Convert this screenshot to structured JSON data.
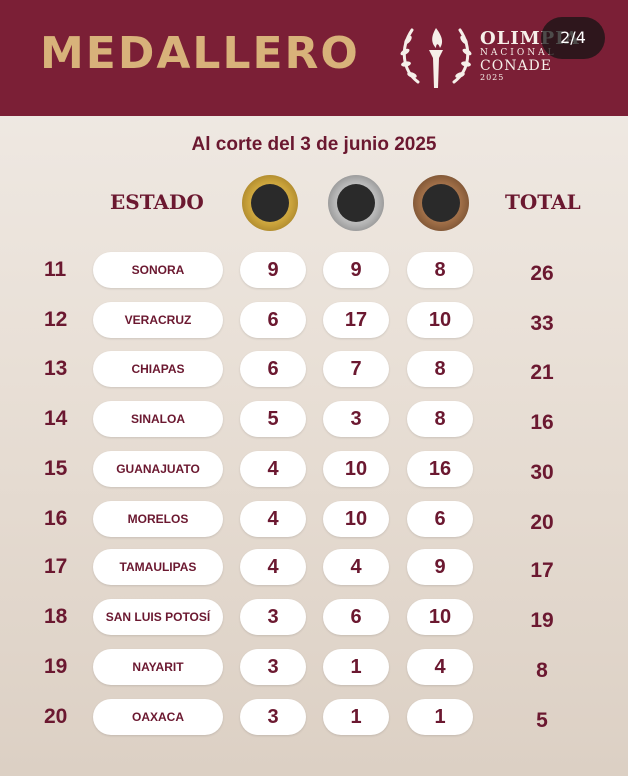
{
  "header": {
    "title": "MEDALLERO",
    "logo": {
      "line1": "OLIMPIA",
      "line2": "NACIONAL",
      "line3": "CONADE",
      "line4": "2025"
    },
    "pager": "2/4"
  },
  "subtitle": "Al corte del 3 de junio 2025",
  "columns": {
    "state": "ESTADO",
    "total": "TOTAL"
  },
  "medals": {
    "gold": {
      "color": "#c9a23a",
      "icon": "gold-medal-icon"
    },
    "silver": {
      "color": "#a9a9a9",
      "icon": "silver-medal-icon"
    },
    "bronze": {
      "color": "#8a5a35",
      "icon": "bronze-medal-icon"
    }
  },
  "rows": [
    {
      "rank": "11",
      "state": "SONORA",
      "gold": "9",
      "silver": "9",
      "bronze": "8",
      "total": "26"
    },
    {
      "rank": "12",
      "state": "VERACRUZ",
      "gold": "6",
      "silver": "17",
      "bronze": "10",
      "total": "33"
    },
    {
      "rank": "13",
      "state": "CHIAPAS",
      "gold": "6",
      "silver": "7",
      "bronze": "8",
      "total": "21"
    },
    {
      "rank": "14",
      "state": "SINALOA",
      "gold": "5",
      "silver": "3",
      "bronze": "8",
      "total": "16"
    },
    {
      "rank": "15",
      "state": "GUANAJUATO",
      "gold": "4",
      "silver": "10",
      "bronze": "16",
      "total": "30"
    },
    {
      "rank": "16",
      "state": "MORELOS",
      "gold": "4",
      "silver": "10",
      "bronze": "6",
      "total": "20"
    },
    {
      "rank": "17",
      "state": "TAMAULIPAS",
      "gold": "4",
      "silver": "4",
      "bronze": "9",
      "total": "17"
    },
    {
      "rank": "18",
      "state": "SAN LUIS POTOSÍ",
      "gold": "3",
      "silver": "6",
      "bronze": "10",
      "total": "19"
    },
    {
      "rank": "19",
      "state": "NAYARIT",
      "gold": "3",
      "silver": "1",
      "bronze": "4",
      "total": "8"
    },
    {
      "rank": "20",
      "state": "OAXACA",
      "gold": "3",
      "silver": "1",
      "bronze": "1",
      "total": "5"
    }
  ]
}
